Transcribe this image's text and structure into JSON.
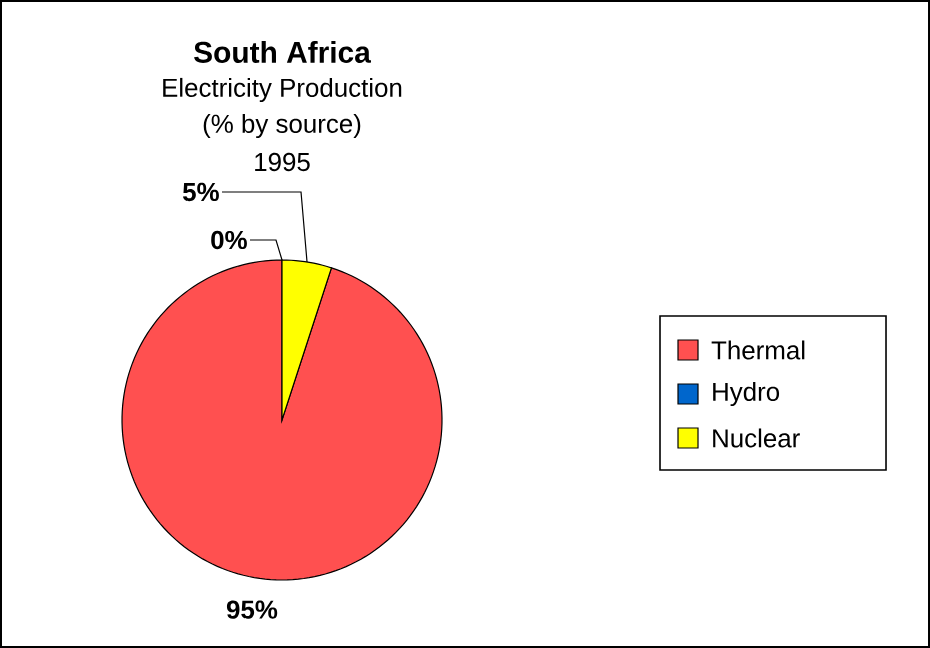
{
  "chart_data": {
    "type": "pie",
    "title": "South Africa",
    "subtitle": "Electricity Production",
    "annotations": [
      "(% by source)",
      "1995"
    ],
    "categories": [
      "Thermal",
      "Hydro",
      "Nuclear"
    ],
    "values": [
      95,
      0,
      5
    ],
    "colors": [
      "#ff5050",
      "#0066cc",
      "#ffff00"
    ],
    "value_labels": [
      "95%",
      "0%",
      "5%"
    ],
    "legend": "right"
  }
}
